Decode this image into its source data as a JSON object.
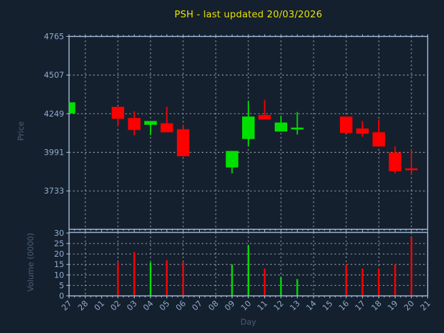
{
  "window": {
    "background": "#15202e"
  },
  "chart_data": {
    "type": "candlestick",
    "title": "PSH - last updated 20/03/2026",
    "xlabel": "Day",
    "ylabel_price": "Price",
    "ylabel_volume": "Volume (0000)",
    "legend": "none",
    "grid": "dashed",
    "categories": [
      "27",
      "28",
      "01",
      "02",
      "03",
      "04",
      "05",
      "06",
      "07",
      "08",
      "09",
      "10",
      "11",
      "12",
      "13",
      "14",
      "15",
      "16",
      "17",
      "18",
      "19",
      "20",
      "21"
    ],
    "gridline_days": [
      "28",
      "02",
      "04",
      "06",
      "08",
      "10",
      "12",
      "14",
      "16",
      "18",
      "20"
    ],
    "price_ticks": [
      4765,
      4507,
      4249,
      3991,
      3733
    ],
    "volume_ticks": [
      30,
      25,
      20,
      15,
      10,
      5,
      0
    ],
    "price_ylim": [
      3477,
      4765
    ],
    "volume_ylim": [
      0,
      30.3
    ],
    "series": [
      {
        "day": "27",
        "open": 4250,
        "high": 4325,
        "low": 4250,
        "close": 4325,
        "volume": null,
        "color": "up"
      },
      {
        "day": "02",
        "open": 4295,
        "high": 4295,
        "low": 4165,
        "close": 4215,
        "volume": 16,
        "color": "down"
      },
      {
        "day": "03",
        "open": 4220,
        "high": 4265,
        "low": 4105,
        "close": 4140,
        "volume": 21,
        "color": "down"
      },
      {
        "day": "04",
        "open": 4175,
        "high": 4200,
        "low": 4105,
        "close": 4200,
        "volume": 16,
        "color": "up"
      },
      {
        "day": "05",
        "open": 4185,
        "high": 4295,
        "low": 4125,
        "close": 4125,
        "volume": 17,
        "color": "down"
      },
      {
        "day": "06",
        "open": 4145,
        "high": 4175,
        "low": 3965,
        "close": 3965,
        "volume": 16,
        "color": "down"
      },
      {
        "day": "09",
        "open": 3890,
        "high": 4000,
        "low": 3850,
        "close": 4000,
        "volume": 15,
        "color": "up"
      },
      {
        "day": "10",
        "open": 4080,
        "high": 4335,
        "low": 4030,
        "close": 4230,
        "volume": 24,
        "color": "up"
      },
      {
        "day": "11",
        "open": 4240,
        "high": 4340,
        "low": 4210,
        "close": 4210,
        "volume": 13,
        "color": "down"
      },
      {
        "day": "12",
        "open": 4130,
        "high": 4235,
        "low": 4130,
        "close": 4190,
        "volume": 9,
        "color": "up"
      },
      {
        "day": "13",
        "open": 4150,
        "high": 4260,
        "low": 4110,
        "close": 4150,
        "volume": 8,
        "color": "up"
      },
      {
        "day": "16",
        "open": 4230,
        "high": 4230,
        "low": 4120,
        "close": 4120,
        "volume": 15,
        "color": "down"
      },
      {
        "day": "17",
        "open": 4150,
        "high": 4200,
        "low": 4095,
        "close": 4115,
        "volume": 13,
        "color": "down"
      },
      {
        "day": "18",
        "open": 4125,
        "high": 4210,
        "low": 4030,
        "close": 4030,
        "volume": 13,
        "color": "down"
      },
      {
        "day": "19",
        "open": 3990,
        "high": 4030,
        "low": 3850,
        "close": 3865,
        "volume": 15,
        "color": "down"
      },
      {
        "day": "20",
        "open": 3880,
        "high": 4010,
        "low": 3845,
        "close": 3875,
        "volume": 28,
        "color": "down"
      }
    ],
    "colors": {
      "up": "#00e000",
      "down": "#ff0000",
      "grid": "#a9b0bb",
      "spine": "#a6c1e0",
      "tick_label": "#8fabcd",
      "axis_label": "#4a5e76",
      "title": "#e8e400",
      "background": "#15202e"
    }
  }
}
